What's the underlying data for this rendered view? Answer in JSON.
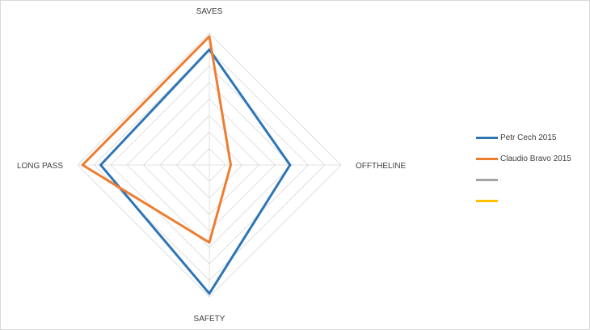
{
  "chart_data": {
    "type": "radar",
    "axes": [
      "SAVES",
      "OFFTHELINE",
      "SAFETY",
      "LONG PASS"
    ],
    "rmax": 8,
    "rings": 8,
    "grid": true,
    "legend_position": "right",
    "series": [
      {
        "name": "Petr Cech 2015",
        "color": "#2E75B6",
        "values": [
          7.0,
          4.9,
          7.8,
          6.6
        ]
      },
      {
        "name": "Claudio Bravo 2015",
        "color": "#ED7D31",
        "values": [
          7.8,
          1.3,
          4.7,
          7.7
        ]
      },
      {
        "name": "",
        "color": "#A5A5A5",
        "values": []
      },
      {
        "name": "",
        "color": "#FFC000",
        "values": []
      }
    ]
  }
}
